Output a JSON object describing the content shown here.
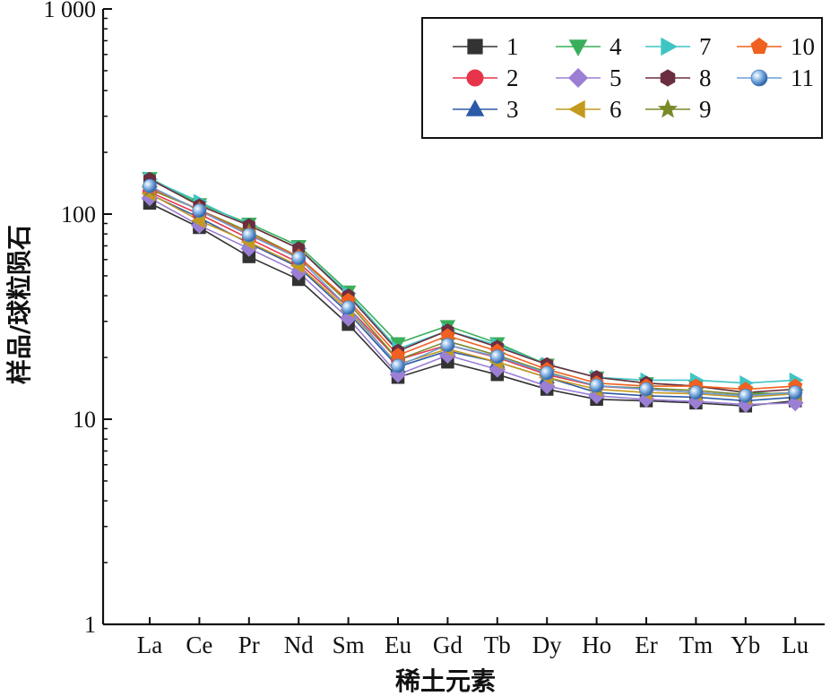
{
  "chart_data": {
    "type": "line",
    "title": "",
    "xlabel": "稀土元素",
    "ylabel": "样品/球粒陨石",
    "y_scale": "log",
    "ylim": [
      1,
      1000
    ],
    "y_ticks": [
      {
        "value": 1,
        "label": "1"
      },
      {
        "value": 10,
        "label": "10"
      },
      {
        "value": 100,
        "label": "100"
      },
      {
        "value": 1000,
        "label": "1 000"
      }
    ],
    "grid": false,
    "legend_position": "top-right",
    "categories": [
      "La",
      "Ce",
      "Pr",
      "Nd",
      "Sm",
      "Eu",
      "Gd",
      "Tb",
      "Dy",
      "Ho",
      "Er",
      "Tm",
      "Yb",
      "Lu"
    ],
    "series": [
      {
        "name": "1",
        "color": "#333333",
        "marker": "square",
        "values": [
          113,
          86,
          62,
          48,
          29,
          16,
          19,
          16.5,
          14,
          12.5,
          12.3,
          12,
          11.6,
          12.3
        ]
      },
      {
        "name": "2",
        "color": "#e8344a",
        "marker": "circle",
        "values": [
          128,
          100,
          76,
          58,
          35,
          19.5,
          23,
          20,
          16.5,
          14.5,
          14,
          13.5,
          13,
          13.5
        ]
      },
      {
        "name": "3",
        "color": "#2c5aa8",
        "marker": "triangle-up",
        "values": [
          125,
          96,
          72,
          55,
          33,
          18,
          21.5,
          19,
          16,
          13.5,
          13,
          12.8,
          12.3,
          12.8
        ]
      },
      {
        "name": "4",
        "color": "#3aaf5a",
        "marker": "triangle-down",
        "values": [
          150,
          112,
          90,
          70,
          42,
          23.5,
          28.5,
          23.5,
          18.5,
          16,
          15,
          14.5,
          13.5,
          13.2
        ]
      },
      {
        "name": "5",
        "color": "#9b7fd4",
        "marker": "diamond",
        "values": [
          120,
          88,
          68,
          52,
          31,
          16.5,
          20.5,
          17.5,
          14.5,
          13,
          12.5,
          12.2,
          11.8,
          12
        ]
      },
      {
        "name": "6",
        "color": "#c49a1e",
        "marker": "triangle-left",
        "values": [
          126,
          93,
          73,
          56,
          34,
          18.5,
          22,
          19,
          16,
          14,
          13.5,
          13.3,
          12.8,
          13.3
        ]
      },
      {
        "name": "7",
        "color": "#3fc4c4",
        "marker": "triangle-right",
        "values": [
          148,
          115,
          88,
          68,
          41,
          22,
          27,
          23,
          18.5,
          16,
          15.5,
          15.5,
          15,
          15.5
        ]
      },
      {
        "name": "8",
        "color": "#6b2e3e",
        "marker": "hexagon",
        "values": [
          148,
          110,
          88,
          68,
          40,
          21.5,
          27,
          22.5,
          18.5,
          16,
          15,
          14.5,
          13.5,
          14
        ]
      },
      {
        "name": "9",
        "color": "#7a8a2a",
        "marker": "star",
        "values": [
          132,
          105,
          82,
          62,
          37,
          19.5,
          24,
          20.5,
          17,
          14.5,
          14.2,
          13.8,
          13.2,
          13.5
        ]
      },
      {
        "name": "10",
        "color": "#f06020",
        "marker": "pentagon",
        "values": [
          135,
          105,
          80,
          62,
          38,
          20.5,
          25.5,
          21.5,
          17.5,
          15,
          14.5,
          14.5,
          14,
          14.5
        ]
      },
      {
        "name": "11",
        "color": "#6a9fd8",
        "marker": "sphere",
        "values": [
          137,
          104,
          79,
          61,
          35,
          18.2,
          23,
          20.2,
          16.8,
          14.6,
          14,
          13.5,
          13,
          13.5
        ]
      }
    ]
  }
}
